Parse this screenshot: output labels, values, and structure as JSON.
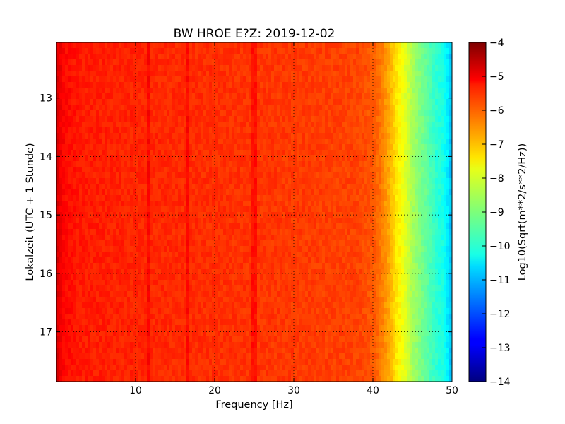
{
  "chart_data": {
    "type": "heatmap",
    "title": "BW HROE E?Z: 2019-12-02",
    "xlabel": "Frequency [Hz]",
    "ylabel": "Lokalzeit (UTC + 1 Stunde)",
    "colorbar_label": "Log10(Sqrt(m**2/s**2/Hz))",
    "xlim": [
      0,
      50
    ],
    "ylim": [
      17.85,
      12.05
    ],
    "y_inverted": true,
    "x_ticks": [
      10,
      20,
      30,
      40,
      50
    ],
    "x_tick_labels": [
      "10",
      "20",
      "30",
      "40",
      "50"
    ],
    "y_ticks": [
      13,
      14,
      15,
      16,
      17
    ],
    "y_tick_labels": [
      "13",
      "14",
      "15",
      "16",
      "17"
    ],
    "grid": true,
    "colormap": "jet",
    "color_range": [
      -14,
      -4
    ],
    "colorbar_ticks": [
      -4,
      -5,
      -6,
      -7,
      -8,
      -9,
      -10,
      -11,
      -12,
      -13,
      -14
    ],
    "colorbar_tick_labels": [
      "−4",
      "−5",
      "−6",
      "−7",
      "−8",
      "−9",
      "−10",
      "−11",
      "−12",
      "−13",
      "−14"
    ],
    "spectrum_profile": {
      "frequency_hz": [
        0,
        0.5,
        1,
        3,
        10,
        20,
        30,
        38,
        40,
        41,
        42,
        43,
        44,
        45,
        46,
        47,
        48,
        49,
        49.6,
        50
      ],
      "level": [
        -4.9,
        -5.1,
        -5.3,
        -5.5,
        -5.6,
        -5.7,
        -5.8,
        -5.9,
        -6.1,
        -6.4,
        -6.9,
        -7.5,
        -8.0,
        -8.6,
        -9.0,
        -9.4,
        -9.8,
        -10.1,
        -10.5,
        -11.0
      ]
    },
    "spectral_lines_hz": [
      11.5,
      16.7,
      25.0
    ],
    "time_range_hours": [
      12.05,
      17.85
    ]
  }
}
